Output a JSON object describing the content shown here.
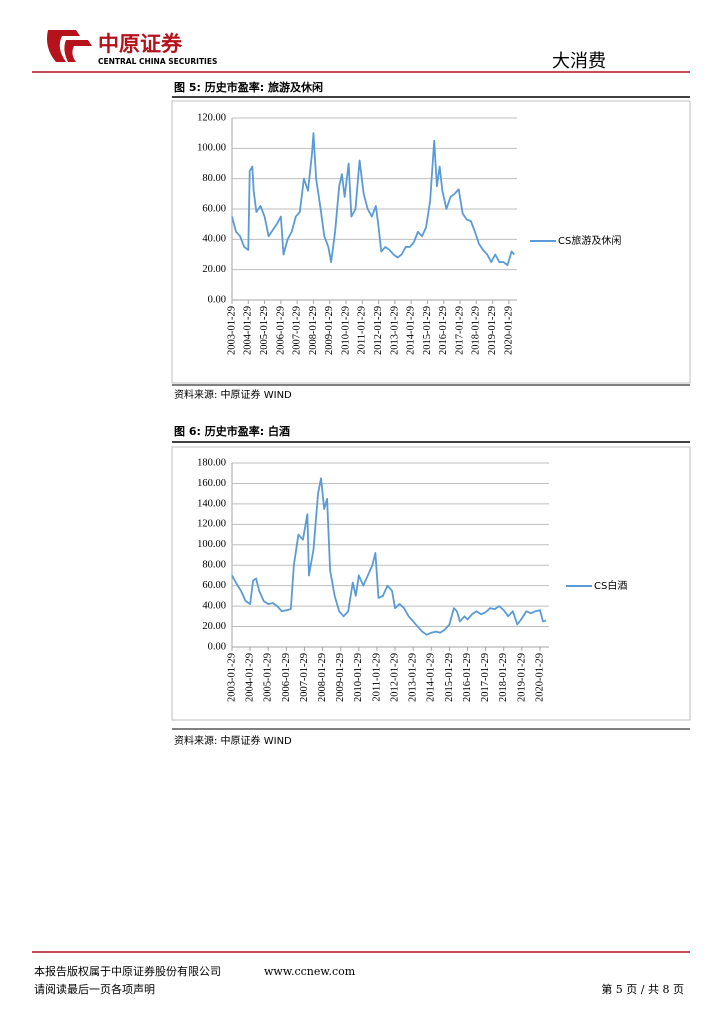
{
  "header": {
    "brand_cn": "中原证券",
    "brand_en": "CENTRAL CHINA SECURITIES",
    "section": "大消费"
  },
  "figures": [
    {
      "caption": "图 5: 历史市盈率: 旅游及休闲",
      "source": "资料来源: 中原证券 WIND"
    },
    {
      "caption": "图 6: 历史市盈率: 白酒",
      "source": "资料来源: 中原证券 WIND"
    }
  ],
  "chart_data": [
    {
      "type": "line",
      "x": [
        "2003-01-29",
        "2003-04-29",
        "2003-07-29",
        "2003-10-29",
        "2004-01-29",
        "2004-03-01",
        "2004-04-29",
        "2004-05-29",
        "2004-07-29",
        "2004-10-29",
        "2005-01-29",
        "2005-04-29",
        "2005-07-29",
        "2005-10-29",
        "2006-01-29",
        "2006-03-29",
        "2006-06-29",
        "2006-09-29",
        "2006-12-29",
        "2007-03-29",
        "2007-06-29",
        "2007-09-29",
        "2007-12-29",
        "2008-01-29",
        "2008-03-29",
        "2008-06-29",
        "2008-09-29",
        "2008-12-29",
        "2009-03-01",
        "2009-05-29",
        "2009-08-29",
        "2009-10-29",
        "2009-12-29",
        "2010-03-29",
        "2010-05-29",
        "2010-08-29",
        "2010-11-29",
        "2011-03-01",
        "2011-05-29",
        "2011-08-29",
        "2011-11-29",
        "2012-01-29",
        "2012-03-29",
        "2012-06-29",
        "2012-09-29",
        "2012-12-29",
        "2013-03-29",
        "2013-06-29",
        "2013-09-29",
        "2013-12-29",
        "2014-03-29",
        "2014-06-29",
        "2014-09-29",
        "2014-12-29",
        "2015-03-29",
        "2015-06-29",
        "2015-08-29",
        "2015-10-29",
        "2015-12-29",
        "2016-03-29",
        "2016-06-29",
        "2016-09-29",
        "2016-12-29",
        "2017-03-29",
        "2017-06-29",
        "2017-09-29",
        "2017-12-29",
        "2018-03-29",
        "2018-06-29",
        "2018-09-29",
        "2018-12-29",
        "2019-03-29",
        "2019-06-29",
        "2019-09-29",
        "2019-12-29",
        "2020-03-29",
        "2020-05-29"
      ],
      "series": [
        {
          "name": "CS旅游及休闲",
          "color": "#5b9bd5",
          "values": [
            55,
            45,
            42,
            35,
            33,
            85,
            88,
            72,
            58,
            62,
            55,
            42,
            46,
            50,
            55,
            30,
            40,
            45,
            55,
            58,
            80,
            72,
            97,
            110,
            80,
            62,
            42,
            35,
            25,
            45,
            75,
            83,
            68,
            90,
            55,
            60,
            92,
            70,
            60,
            55,
            62,
            48,
            32,
            35,
            33,
            30,
            28,
            30,
            35,
            35,
            38,
            45,
            42,
            48,
            65,
            105,
            75,
            88,
            72,
            60,
            68,
            70,
            73,
            57,
            53,
            52,
            45,
            37,
            33,
            30,
            25,
            30,
            25,
            25,
            23,
            32,
            30
          ]
        }
      ],
      "xlim": [
        "2003-01-29",
        "2020-07-29"
      ],
      "xticks": [
        "2003-01-29",
        "2004-01-29",
        "2005-01-29",
        "2006-01-29",
        "2007-01-29",
        "2008-01-29",
        "2009-01-29",
        "2010-01-29",
        "2011-01-29",
        "2012-01-29",
        "2013-01-29",
        "2014-01-29",
        "2015-01-29",
        "2016-01-29",
        "2017-01-29",
        "2018-01-29",
        "2019-01-29",
        "2020-01-29"
      ],
      "ylim": [
        0,
        120
      ],
      "yticks": [
        {
          "value": 0,
          "label": "0.00"
        },
        {
          "value": 20,
          "label": "20.00"
        },
        {
          "value": 40,
          "label": "40.00"
        },
        {
          "value": 60,
          "label": "60.00"
        },
        {
          "value": 80,
          "label": "80.00"
        },
        {
          "value": 100,
          "label": "100.00"
        },
        {
          "value": 120,
          "label": "120.00"
        }
      ],
      "grid": true,
      "legend": "right"
    },
    {
      "type": "line",
      "x": [
        "2003-01-29",
        "2003-04-29",
        "2003-07-29",
        "2003-10-29",
        "2004-01-29",
        "2004-03-29",
        "2004-05-29",
        "2004-07-29",
        "2004-10-29",
        "2005-01-29",
        "2005-04-29",
        "2005-07-29",
        "2005-10-29",
        "2006-01-29",
        "2006-04-29",
        "2006-06-29",
        "2006-09-29",
        "2006-12-29",
        "2007-03-29",
        "2007-04-29",
        "2007-07-29",
        "2007-10-29",
        "2007-12-29",
        "2008-03-01",
        "2008-04-29",
        "2008-06-29",
        "2008-09-29",
        "2008-12-29",
        "2009-03-29",
        "2009-06-29",
        "2009-09-29",
        "2009-11-29",
        "2010-01-29",
        "2010-04-29",
        "2010-07-29",
        "2010-10-29",
        "2010-12-29",
        "2011-03-01",
        "2011-05-29",
        "2011-08-29",
        "2011-11-29",
        "2012-01-29",
        "2012-04-29",
        "2012-07-29",
        "2012-10-29",
        "2013-01-29",
        "2013-04-29",
        "2013-07-29",
        "2013-10-29",
        "2014-01-29",
        "2014-04-29",
        "2014-07-29",
        "2014-10-29",
        "2015-01-29",
        "2015-04-29",
        "2015-06-29",
        "2015-08-29",
        "2015-11-29",
        "2016-01-29",
        "2016-04-29",
        "2016-07-29",
        "2016-10-29",
        "2017-01-29",
        "2017-04-29",
        "2017-07-29",
        "2017-10-29",
        "2018-01-29",
        "2018-04-29",
        "2018-07-29",
        "2018-10-29",
        "2019-01-29",
        "2019-04-29",
        "2019-07-29",
        "2019-10-29",
        "2020-01-29",
        "2020-03-29",
        "2020-05-29"
      ],
      "series": [
        {
          "name": "CS白酒",
          "color": "#5b9bd5",
          "values": [
            70,
            62,
            55,
            45,
            42,
            65,
            67,
            55,
            45,
            42,
            43,
            40,
            35,
            36,
            37,
            80,
            110,
            105,
            130,
            70,
            95,
            150,
            165,
            135,
            145,
            75,
            50,
            35,
            30,
            35,
            63,
            50,
            70,
            60,
            70,
            80,
            92,
            48,
            50,
            60,
            55,
            38,
            42,
            38,
            30,
            25,
            20,
            15,
            12,
            14,
            15,
            14,
            17,
            22,
            38,
            35,
            25,
            30,
            27,
            32,
            35,
            32,
            34,
            38,
            37,
            40,
            36,
            30,
            35,
            22,
            28,
            35,
            33,
            35,
            36,
            25,
            26
          ]
        }
      ],
      "xlim": [
        "2003-01-29",
        "2020-07-29"
      ],
      "xticks": [
        "2003-01-29",
        "2004-01-29",
        "2005-01-29",
        "2006-01-29",
        "2007-01-29",
        "2008-01-29",
        "2009-01-29",
        "2010-01-29",
        "2011-01-29",
        "2012-01-29",
        "2013-01-29",
        "2014-01-29",
        "2015-01-29",
        "2016-01-29",
        "2017-01-29",
        "2018-01-29",
        "2019-01-29",
        "2020-01-29"
      ],
      "ylim": [
        0,
        180
      ],
      "yticks": [
        {
          "value": 0,
          "label": "0.00"
        },
        {
          "value": 20,
          "label": "20.00"
        },
        {
          "value": 40,
          "label": "40.00"
        },
        {
          "value": 60,
          "label": "60.00"
        },
        {
          "value": 80,
          "label": "80.00"
        },
        {
          "value": 100,
          "label": "100.00"
        },
        {
          "value": 120,
          "label": "120.00"
        },
        {
          "value": 140,
          "label": "140.00"
        },
        {
          "value": 160,
          "label": "160.00"
        },
        {
          "value": 180,
          "label": "180.00"
        }
      ],
      "grid": true,
      "legend": "right"
    }
  ],
  "footer": {
    "copyright": "本报告版权属于中原证券股份有限公司",
    "website": "www.ccnew.com",
    "notice": "请阅读最后一页各项声明",
    "page": "第 5 页 / 共 8 页"
  }
}
